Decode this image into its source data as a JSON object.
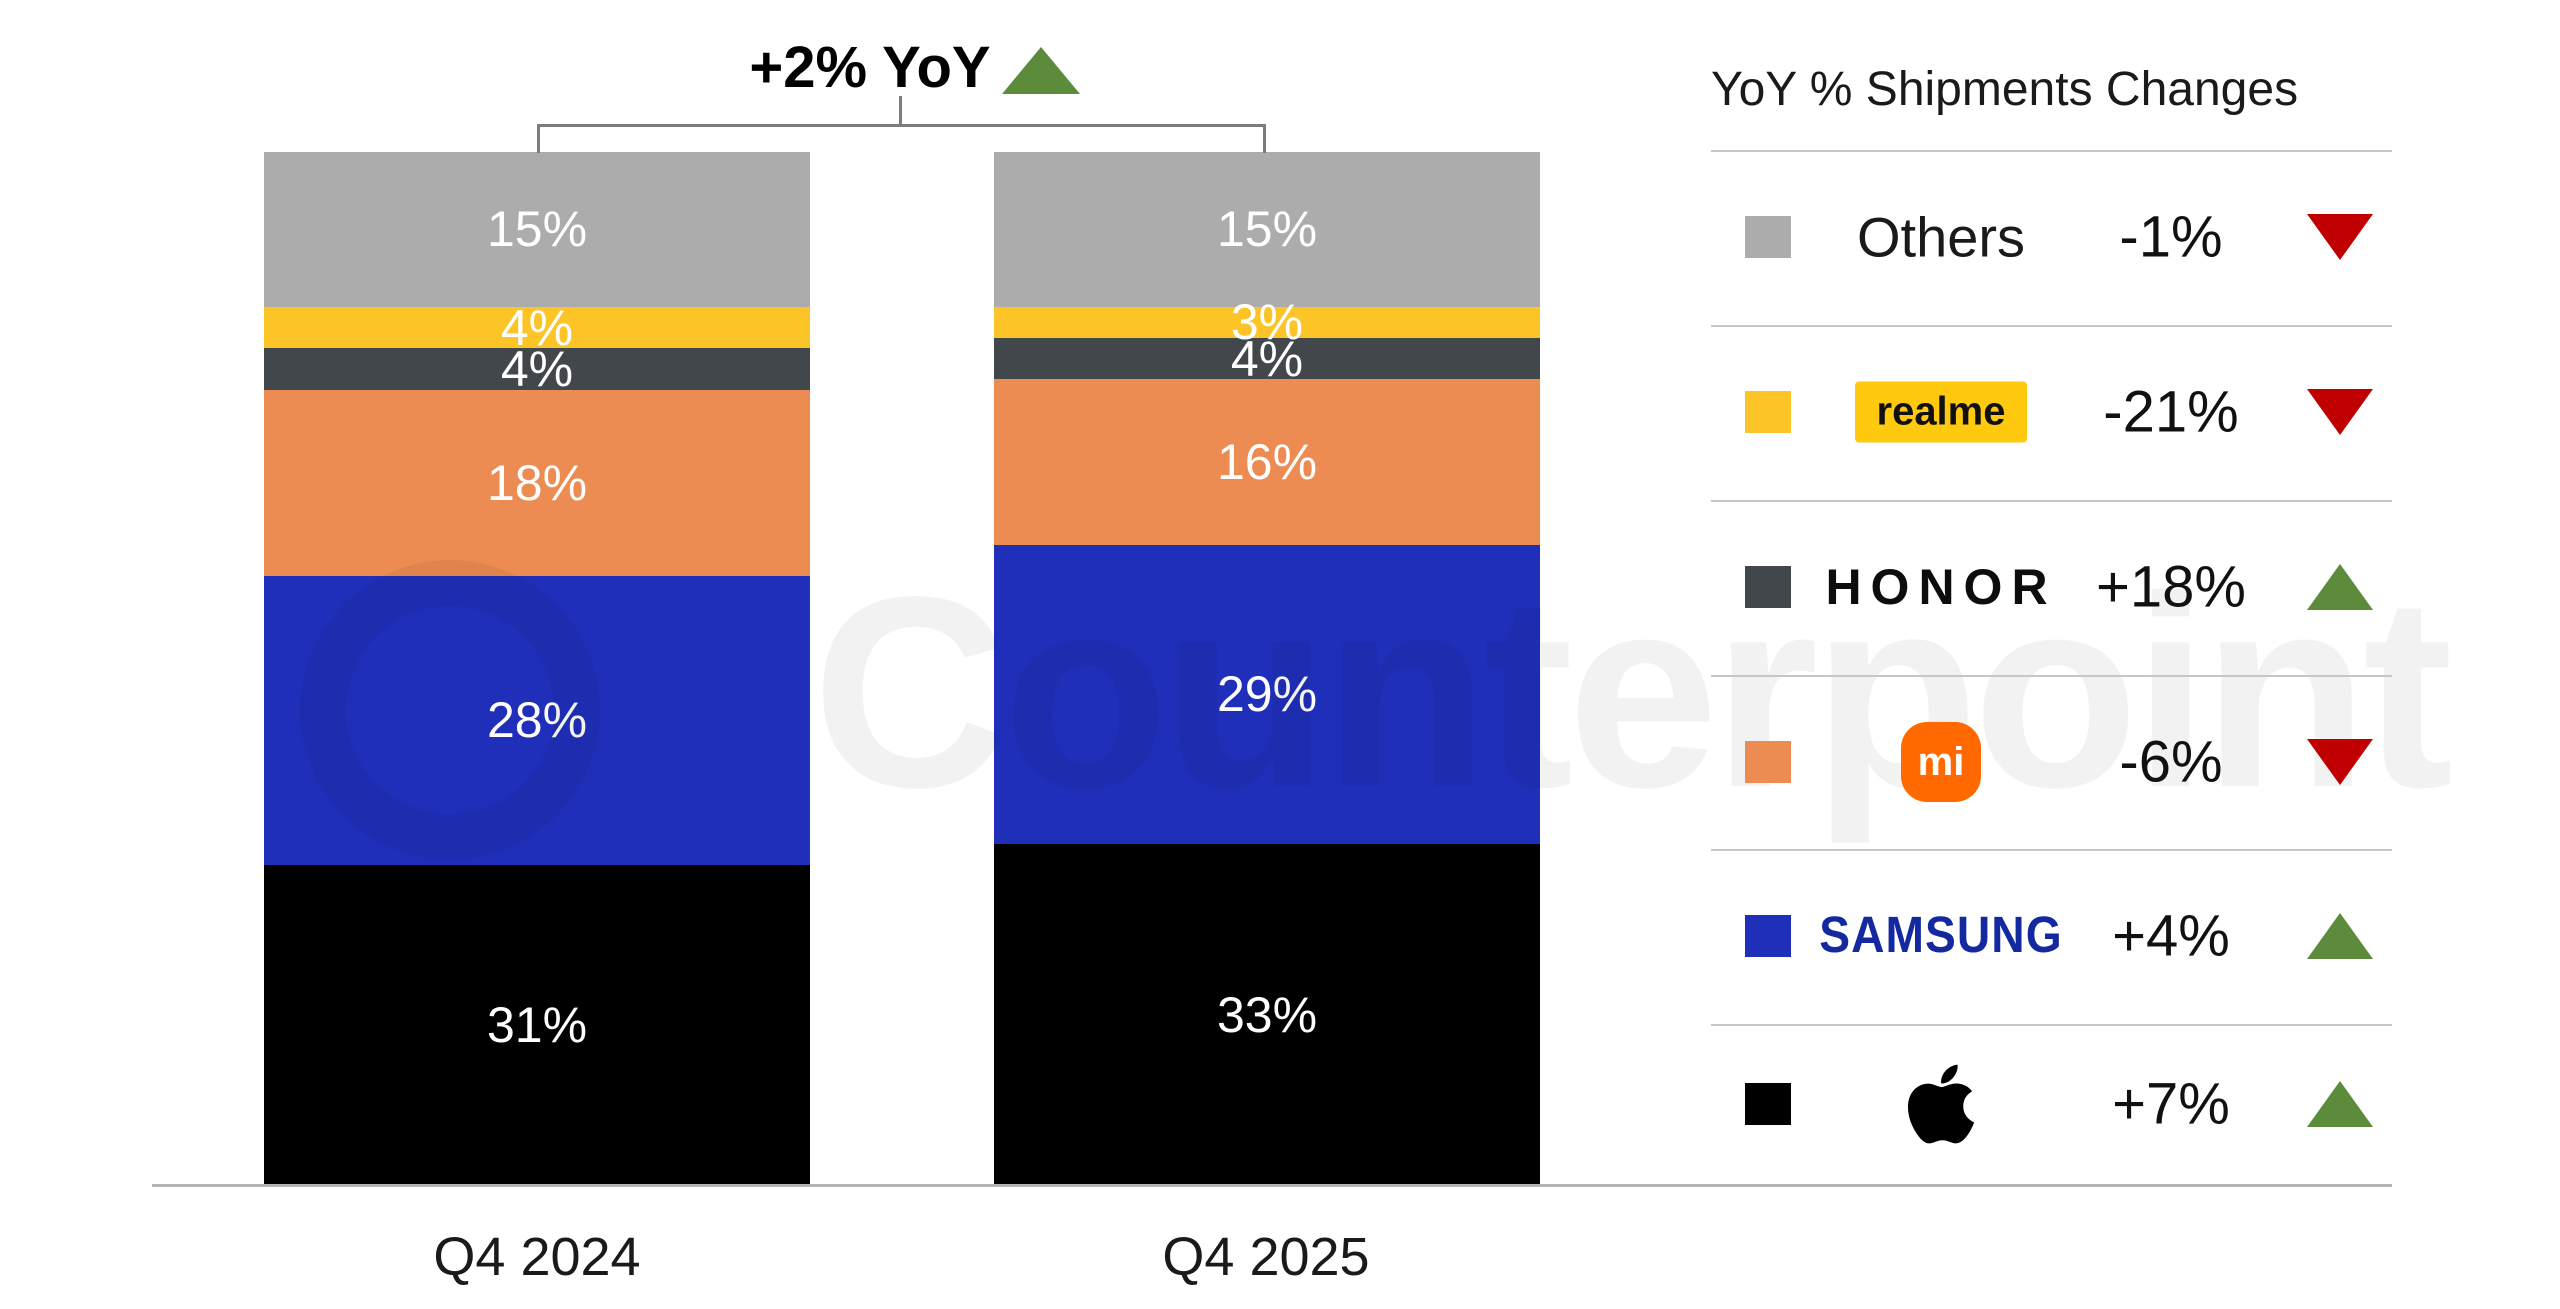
{
  "annotation": {
    "text": "+2% YoY",
    "direction": "up"
  },
  "watermark": {
    "text": "Counterpoint"
  },
  "colors": {
    "up_green": "#5c8b3c",
    "down_red": "#c00000",
    "samsung_brand": "#1428a0",
    "realme_badge": "#ffc90f",
    "mi_logo": "#ff6900",
    "axis_line": "#b3b3b3",
    "bracket_line": "#7c7c7c"
  },
  "legend": {
    "header": "YoY % Shipments Changes",
    "rows": [
      {
        "brand": "Others",
        "logo_type": "text",
        "logo_text": "Others",
        "swatch": "#acacac",
        "value": "-1%",
        "direction": "down"
      },
      {
        "brand": "realme",
        "logo_type": "badge",
        "logo_text": "realme",
        "swatch": "#fdc428",
        "value": "-21%",
        "direction": "down"
      },
      {
        "brand": "HONOR",
        "logo_type": "wordmark-honor",
        "logo_text": "HONOR",
        "swatch": "#42474c",
        "value": "+18%",
        "direction": "up"
      },
      {
        "brand": "Xiaomi",
        "logo_type": "mi-logo",
        "logo_text": "mi",
        "swatch": "#ec8c52",
        "value": "-6%",
        "direction": "down"
      },
      {
        "brand": "Samsung",
        "logo_type": "wordmark-samsung",
        "logo_text": "SAMSUNG",
        "swatch": "#202fba",
        "value": "+4%",
        "direction": "up"
      },
      {
        "brand": "Apple",
        "logo_type": "apple-logo",
        "logo_text": "",
        "swatch": "#000000",
        "value": "+7%",
        "direction": "up"
      }
    ]
  },
  "chart_data": {
    "type": "bar",
    "stacked": true,
    "title": "+2% YoY",
    "unit": "%",
    "ylim": [
      0,
      100
    ],
    "grid": false,
    "legend_position": "right",
    "categories": [
      "Q4 2024",
      "Q4 2025"
    ],
    "series": [
      {
        "name": "Others",
        "color": "#acacac",
        "values": [
          15,
          15
        ]
      },
      {
        "name": "realme",
        "color": "#fdc428",
        "values": [
          4,
          3
        ]
      },
      {
        "name": "HONOR",
        "color": "#42474c",
        "values": [
          4,
          4
        ]
      },
      {
        "name": "Xiaomi",
        "color": "#ec8c52",
        "values": [
          18,
          16
        ]
      },
      {
        "name": "Samsung",
        "color": "#202fba",
        "values": [
          28,
          29
        ]
      },
      {
        "name": "Apple",
        "color": "#000000",
        "values": [
          31,
          33
        ]
      }
    ],
    "yoy_changes": {
      "Others": -1,
      "realme": -21,
      "HONOR": 18,
      "Xiaomi": -6,
      "Samsung": 4,
      "Apple": 7
    }
  }
}
